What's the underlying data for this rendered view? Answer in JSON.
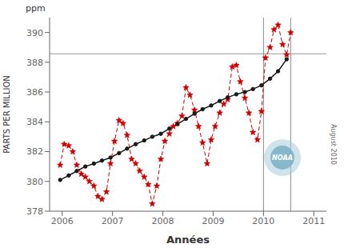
{
  "chart_data": {
    "type": "line",
    "xlabel": "Années",
    "ylabel": "PARTS PER MILLION",
    "annotations": [
      "ppm",
      "NOAA",
      "August 2010"
    ],
    "xlim": [
      2005.75,
      2011.25
    ],
    "ylim": [
      378,
      391
    ],
    "xticks": [
      2006,
      2007,
      2008,
      2009,
      2010,
      2011
    ],
    "yticks": [
      378,
      380,
      382,
      384,
      386,
      388,
      390
    ],
    "grid": false,
    "hlines": [
      {
        "value": 388.57,
        "color": "#999999"
      }
    ],
    "vlines": [
      {
        "value": 2010.0,
        "color": "#888888"
      },
      {
        "value": 2010.54,
        "color": "#888888"
      }
    ],
    "series": [
      {
        "color": "#cc0000",
        "marker": "star",
        "line_style": "dashed",
        "x": [
          2005.96,
          2006.04,
          2006.13,
          2006.21,
          2006.29,
          2006.38,
          2006.46,
          2006.54,
          2006.63,
          2006.71,
          2006.79,
          2006.88,
          2006.96,
          2007.04,
          2007.13,
          2007.21,
          2007.29,
          2007.38,
          2007.46,
          2007.54,
          2007.63,
          2007.71,
          2007.79,
          2007.88,
          2007.96,
          2008.04,
          2008.13,
          2008.21,
          2008.29,
          2008.38,
          2008.46,
          2008.54,
          2008.63,
          2008.71,
          2008.79,
          2008.88,
          2008.96,
          2009.04,
          2009.13,
          2009.21,
          2009.29,
          2009.38,
          2009.46,
          2009.54,
          2009.63,
          2009.71,
          2009.79,
          2009.88,
          2009.96,
          2010.04,
          2010.13,
          2010.21,
          2010.29,
          2010.38,
          2010.46,
          2010.54
        ],
        "values": [
          381.1,
          382.5,
          382.4,
          382.0,
          381.1,
          380.5,
          380.3,
          380.0,
          379.7,
          379.0,
          378.8,
          379.3,
          381.2,
          382.7,
          384.1,
          383.9,
          383.1,
          381.5,
          381.2,
          380.7,
          380.3,
          379.8,
          378.5,
          379.7,
          381.5,
          382.7,
          383.2,
          383.7,
          383.9,
          384.4,
          386.3,
          385.8,
          384.8,
          383.7,
          382.6,
          381.2,
          382.8,
          383.7,
          384.6,
          385.2,
          385.5,
          387.7,
          387.8,
          386.7,
          385.6,
          384.6,
          383.3,
          382.8,
          384.7,
          388.3,
          389.0,
          390.2,
          390.5,
          389.2,
          388.5,
          390.0
        ]
      },
      {
        "color": "#1a1a1a",
        "marker": "circle",
        "line_style": "solid",
        "x": [
          2005.96,
          2006.13,
          2006.29,
          2006.46,
          2006.63,
          2006.79,
          2006.96,
          2007.13,
          2007.29,
          2007.46,
          2007.63,
          2007.79,
          2007.96,
          2008.13,
          2008.29,
          2008.46,
          2008.63,
          2008.79,
          2008.96,
          2009.13,
          2009.29,
          2009.46,
          2009.63,
          2009.79,
          2009.96,
          2010.13,
          2010.29,
          2010.46
        ],
        "values": [
          380.1,
          380.4,
          380.7,
          381.0,
          381.2,
          381.4,
          381.6,
          381.9,
          382.2,
          382.5,
          382.75,
          383.0,
          383.2,
          383.55,
          383.85,
          384.2,
          384.55,
          384.85,
          385.1,
          385.4,
          385.65,
          385.85,
          386.0,
          386.2,
          386.45,
          386.9,
          387.4,
          388.2
        ]
      }
    ]
  }
}
